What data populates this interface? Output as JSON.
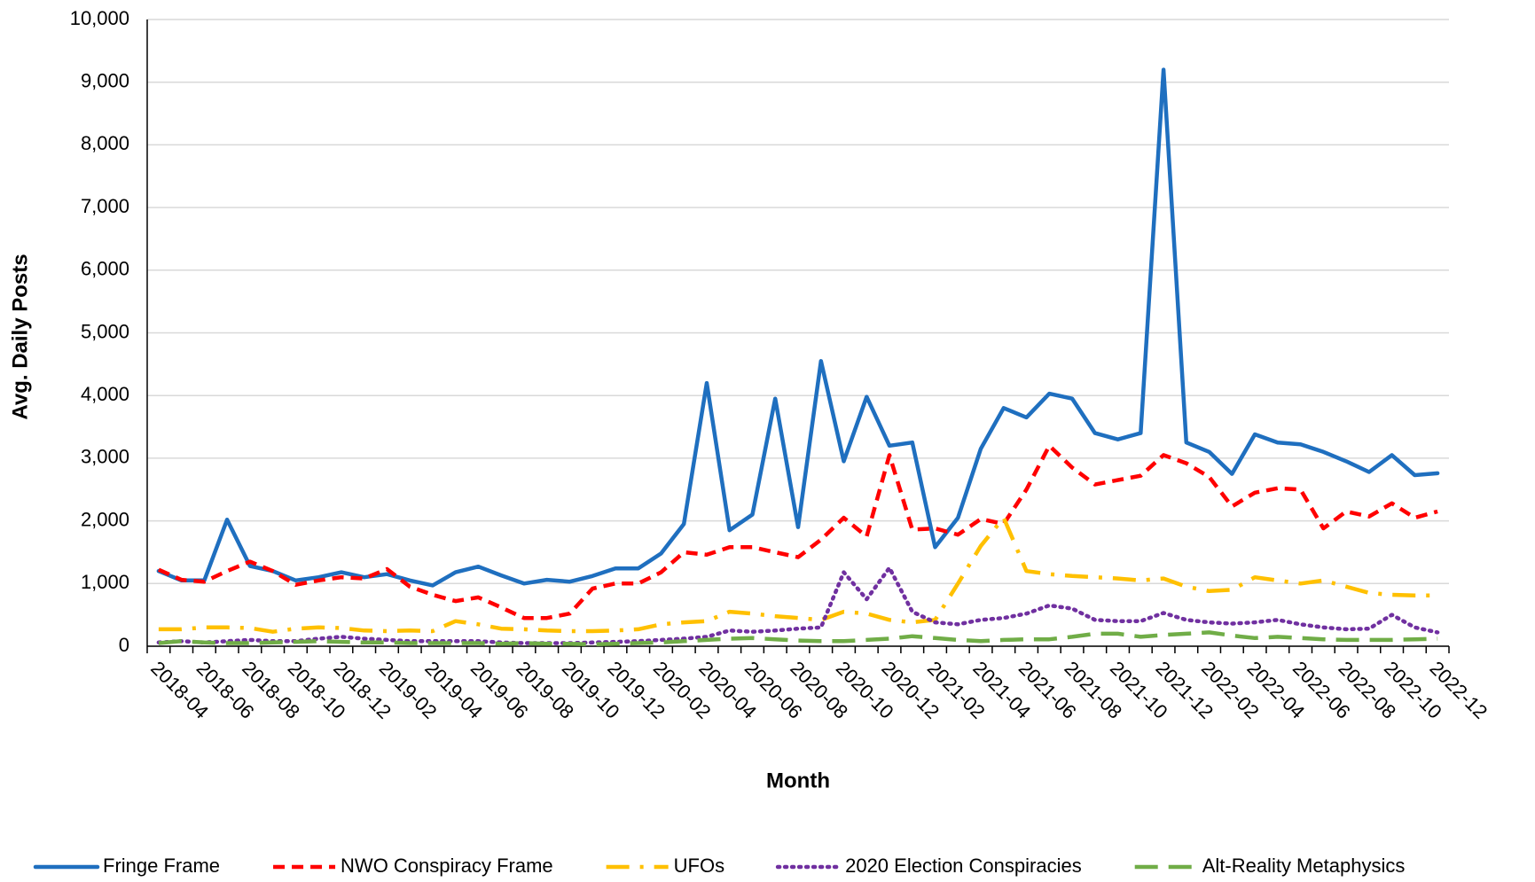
{
  "chart_data": {
    "type": "line",
    "x_label": "Month",
    "y_label": "Avg. Daily Posts",
    "categories": [
      "2018-04",
      null,
      "2018-06",
      null,
      "2018-08",
      null,
      "2018-10",
      null,
      "2018-12",
      null,
      "2019-02",
      null,
      "2019-04",
      null,
      "2019-06",
      null,
      "2019-08",
      null,
      "2019-10",
      null,
      "2019-12",
      null,
      "2020-02",
      null,
      "2020-04",
      null,
      "2020-06",
      null,
      "2020-08",
      null,
      "2020-10",
      null,
      "2020-12",
      null,
      "2021-02",
      null,
      "2021-04",
      null,
      "2021-06",
      null,
      "2021-08",
      null,
      "2021-10",
      null,
      "2021-12",
      null,
      "2022-02",
      null,
      "2022-04",
      null,
      "2022-06",
      null,
      "2022-08",
      null,
      "2022-10",
      null,
      "2022-12"
    ],
    "ylim": [
      0,
      10000
    ],
    "yticks": [
      0,
      {
        "value": 1000,
        "label": "1,000"
      },
      {
        "value": 2000,
        "label": "2,000"
      },
      {
        "value": 3000,
        "label": "3,000"
      },
      {
        "value": 4000,
        "label": "4,000"
      },
      {
        "value": 5000,
        "label": "5,000"
      },
      {
        "value": 6000,
        "label": "6,000"
      },
      {
        "value": 7000,
        "label": "7,000"
      },
      {
        "value": 8000,
        "label": "8,000"
      },
      {
        "value": 9000,
        "label": "9,000"
      },
      {
        "value": 10000,
        "label": "10,000"
      }
    ],
    "grid": true,
    "legend": "bottom",
    "series": [
      {
        "name": "Fringe Frame",
        "color": "#1f6fbf",
        "style": "solid",
        "values": [
          1200,
          1050,
          1050,
          2020,
          1280,
          1200,
          1050,
          1100,
          1180,
          1100,
          1150,
          1050,
          970,
          1180,
          1270,
          1130,
          1000,
          1060,
          1030,
          1120,
          1240,
          1240,
          1480,
          1950,
          4200,
          1850,
          2100,
          3950,
          1900,
          4550,
          2950,
          3980,
          3200,
          3250,
          1580,
          2050,
          3150,
          3800,
          3650,
          4030,
          3950,
          3400,
          3300,
          3400,
          9200,
          3250,
          3100,
          2750,
          3380,
          3250,
          3220,
          3100,
          2950,
          2780,
          3050,
          2730,
          2760
        ]
      },
      {
        "name": "NWO Conspiracy Frame",
        "color": "#ff0000",
        "style": "dash",
        "values": [
          1220,
          1060,
          1030,
          1200,
          1350,
          1200,
          980,
          1050,
          1100,
          1080,
          1230,
          950,
          820,
          720,
          780,
          620,
          450,
          450,
          520,
          920,
          1000,
          1000,
          1180,
          1500,
          1460,
          1580,
          1580,
          1500,
          1420,
          1700,
          2050,
          1750,
          3050,
          1860,
          1880,
          1780,
          2030,
          1950,
          2500,
          3200,
          2850,
          2580,
          2650,
          2720,
          3050,
          2920,
          2700,
          2230,
          2450,
          2520,
          2500,
          1880,
          2150,
          2070,
          2280,
          2050,
          2150
        ]
      },
      {
        "name": "UFOs",
        "color": "#ffc000",
        "style": "longdashdot",
        "values": [
          270,
          270,
          300,
          300,
          290,
          230,
          280,
          300,
          290,
          250,
          240,
          250,
          240,
          400,
          350,
          280,
          270,
          250,
          240,
          240,
          250,
          270,
          350,
          380,
          400,
          550,
          520,
          480,
          450,
          420,
          550,
          520,
          420,
          380,
          420,
          1000,
          1600,
          2050,
          1200,
          1150,
          1120,
          1100,
          1080,
          1050,
          1080,
          950,
          880,
          900,
          1100,
          1050,
          1000,
          1050,
          950,
          850,
          820,
          810,
          810
        ]
      },
      {
        "name": "2020 Election Conspiracies",
        "color": "#7030a0",
        "style": "dot",
        "values": [
          60,
          80,
          60,
          80,
          100,
          80,
          80,
          120,
          150,
          120,
          100,
          80,
          80,
          80,
          80,
          60,
          50,
          50,
          50,
          60,
          70,
          80,
          100,
          120,
          150,
          250,
          230,
          250,
          280,
          300,
          1180,
          750,
          1250,
          550,
          380,
          350,
          420,
          450,
          520,
          650,
          600,
          420,
          400,
          400,
          530,
          420,
          380,
          360,
          380,
          420,
          350,
          300,
          270,
          280,
          500,
          300,
          220
        ]
      },
      {
        "name": "Alt-Reality Metaphysics",
        "color": "#70ad47",
        "style": "longdash",
        "values": [
          50,
          80,
          60,
          50,
          50,
          60,
          70,
          80,
          70,
          60,
          60,
          50,
          50,
          50,
          50,
          40,
          50,
          40,
          40,
          30,
          40,
          50,
          60,
          80,
          100,
          120,
          130,
          110,
          90,
          80,
          80,
          100,
          120,
          160,
          130,
          100,
          80,
          100,
          110,
          110,
          150,
          200,
          200,
          150,
          180,
          200,
          220,
          170,
          130,
          150,
          130,
          110,
          100,
          100,
          100,
          110,
          120
        ]
      }
    ]
  }
}
